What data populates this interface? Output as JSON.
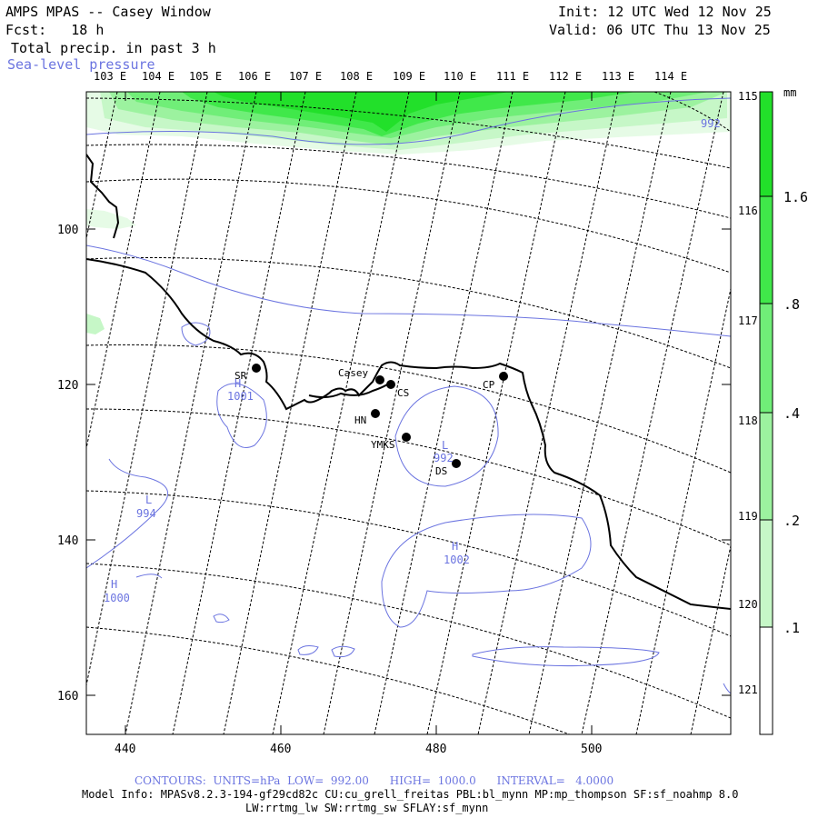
{
  "header": {
    "title": "AMPS MPAS -- Casey Window",
    "fcst": "Fcst:   18 h",
    "field": "Total precip. in past 3 h",
    "overlay": "Sea-level pressure",
    "init": "Init: 12 UTC Wed 12 Nov 25",
    "valid": "Valid: 06 UTC Thu 13 Nov 25"
  },
  "top_labels": [
    "103 E",
    "104 E",
    "105 E",
    "106 E",
    "107 E",
    "108 E",
    "109 E",
    "110 E",
    "111 E",
    "112 E",
    "113 E",
    "114 E"
  ],
  "right_labels": [
    "115 E",
    "116 E",
    "117 E",
    "118 E",
    "119 E",
    "120 E",
    "121 E"
  ],
  "left_ticks": [
    "100",
    "120",
    "140",
    "160"
  ],
  "bottom_ticks": [
    "440",
    "460",
    "480",
    "500"
  ],
  "colorbar": {
    "unit": "mm",
    "labels": [
      "1.6",
      ".8",
      ".4",
      ".2",
      ".1"
    ],
    "colors": [
      "#22e02a",
      "#40e84a",
      "#70ee78",
      "#9cf29f",
      "#c6f7c7",
      "#e6fbe6"
    ]
  },
  "stations": [
    {
      "id": "SR",
      "label": "SR"
    },
    {
      "id": "casey",
      "label": "Casey"
    },
    {
      "id": "CS",
      "label": "CS"
    },
    {
      "id": "HN",
      "label": "HN"
    },
    {
      "id": "YMKS",
      "label": "YMKS"
    },
    {
      "id": "DS",
      "label": "DS"
    },
    {
      "id": "CP",
      "label": "CP"
    }
  ],
  "pressure_labels": [
    {
      "letter": "H",
      "value": "1001"
    },
    {
      "letter": "L",
      "value": "994"
    },
    {
      "letter": "H",
      "value": "1000"
    },
    {
      "letter": "L",
      "value": "992"
    },
    {
      "letter": "H",
      "value": "1002"
    },
    {
      "value": "992"
    }
  ],
  "footer": {
    "contours": "CONTOURS:  UNITS=hPa  LOW=  992.00      HIGH=  1000.0      INTERVAL=   4.0000",
    "model_info": "Model Info: MPASv8.2.3-194-gf29cd82c CU:cu_grell_freitas PBL:bl_mynn MP:mp_thompson SF:sf_noahmp 8.0",
    "model_info2": "LW:rrtmg_lw SW:rrtmg_sw SFLAY:sf_mynn"
  }
}
